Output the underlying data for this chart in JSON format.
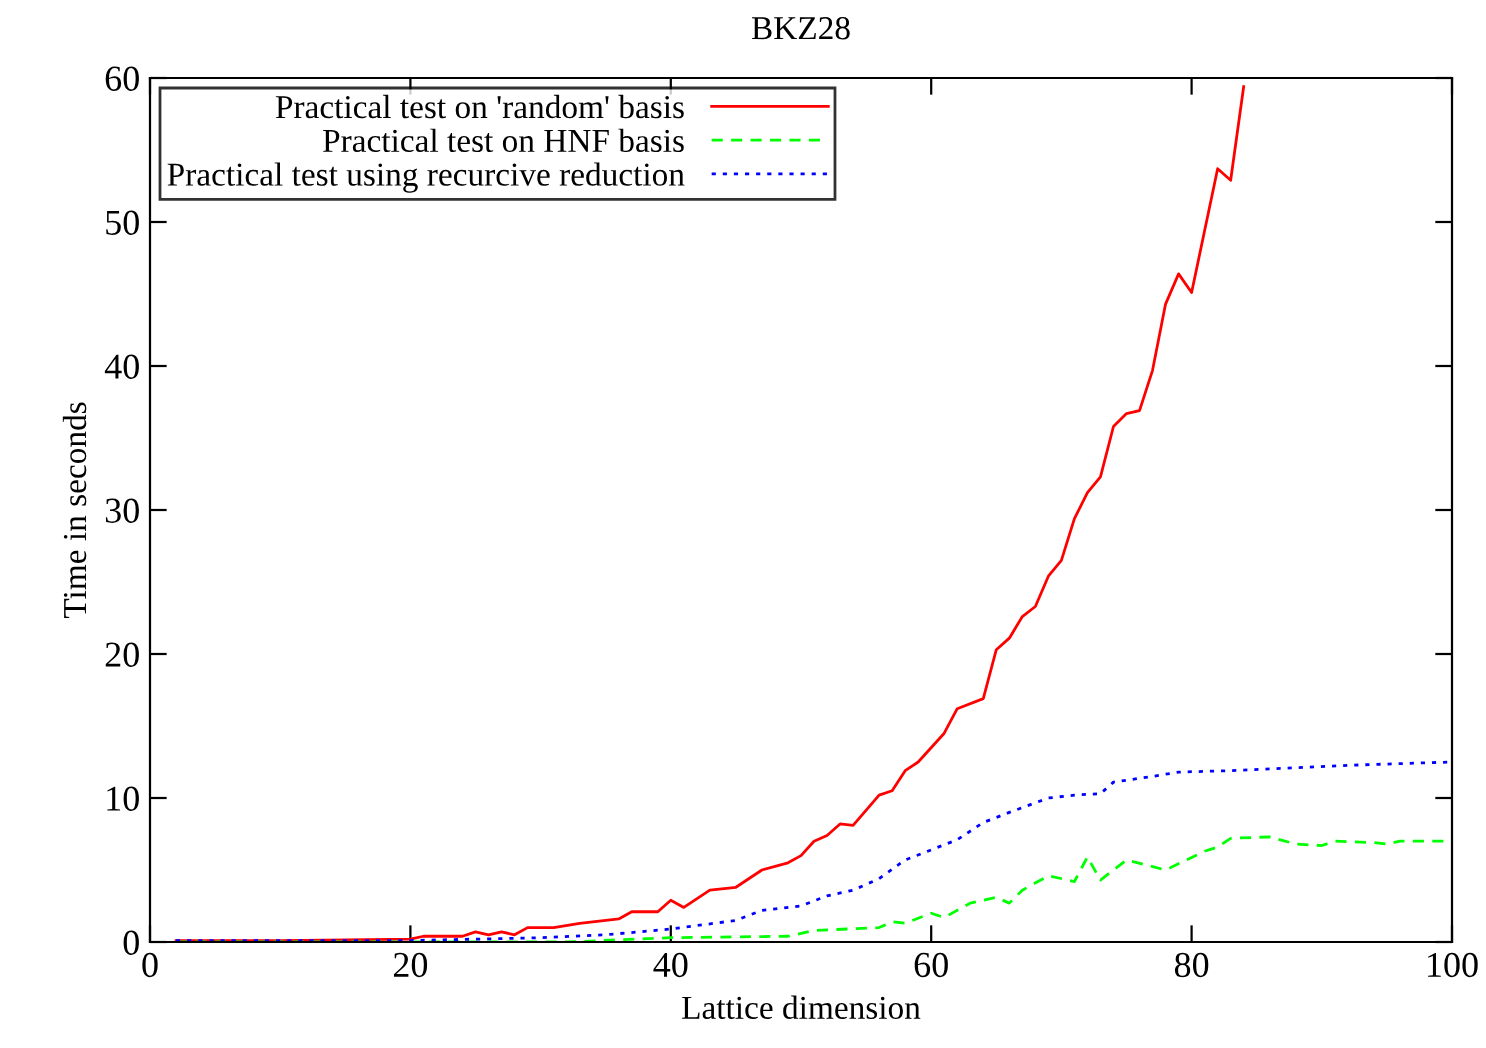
{
  "chart_data": {
    "type": "line",
    "title": "BKZ28",
    "xlabel": "Lattice dimension",
    "ylabel": "Time in seconds",
    "xlim": [
      0,
      100
    ],
    "ylim": [
      0,
      60
    ],
    "xticks": [
      0,
      20,
      40,
      60,
      80,
      100
    ],
    "yticks": [
      0,
      10,
      20,
      30,
      40,
      50,
      60
    ],
    "grid": false,
    "legend": "top left",
    "marker": "none",
    "series": [
      {
        "name": "Practical test on 'random' basis",
        "color": "#ff0000",
        "line_style": "solid",
        "x": [
          2,
          10,
          20,
          21,
          24,
          25,
          26,
          27,
          28,
          29,
          31,
          33,
          35,
          36,
          37,
          39,
          40,
          41,
          43,
          45,
          47,
          49,
          50,
          51,
          52,
          53,
          54,
          56,
          57,
          58,
          59,
          61,
          62,
          64,
          65,
          66,
          67,
          68,
          69,
          70,
          71,
          72,
          73,
          74,
          75,
          76,
          77,
          78,
          79,
          80,
          82,
          83,
          84
        ],
        "values": [
          0.1,
          0.1,
          0.2,
          0.4,
          0.4,
          0.7,
          0.5,
          0.7,
          0.5,
          1.0,
          1.0,
          1.3,
          1.5,
          1.6,
          2.1,
          2.1,
          2.9,
          2.4,
          3.6,
          3.8,
          5.0,
          5.5,
          6.0,
          7.0,
          7.4,
          8.2,
          8.1,
          10.2,
          10.5,
          11.9,
          12.5,
          14.5,
          16.2,
          16.9,
          20.3,
          21.1,
          22.6,
          23.3,
          25.4,
          26.5,
          29.4,
          31.2,
          32.3,
          35.8,
          36.7,
          36.9,
          39.7,
          44.3,
          46.4,
          45.1,
          53.7,
          52.9,
          59.4
        ]
      },
      {
        "name": "Practical test on HNF basis",
        "color": "#00ff00",
        "line_style": "dashed",
        "x": [
          2,
          20,
          32,
          40,
          49,
          51,
          56,
          57,
          58,
          60,
          61,
          63,
          65,
          66,
          67,
          69,
          71,
          72,
          73,
          75,
          78,
          81,
          82,
          83,
          86,
          88,
          90,
          91,
          94,
          95,
          96,
          100
        ],
        "values": [
          0.0,
          0.0,
          0.0,
          0.3,
          0.4,
          0.8,
          1.0,
          1.4,
          1.3,
          2.0,
          1.7,
          2.7,
          3.1,
          2.7,
          3.6,
          4.6,
          4.2,
          5.9,
          4.3,
          5.7,
          5.0,
          6.3,
          6.6,
          7.2,
          7.3,
          6.8,
          6.7,
          7.0,
          6.9,
          6.8,
          7.0,
          7.0
        ]
      },
      {
        "name": "Practical test using recurcive reduction",
        "color": "#0000ff",
        "line_style": "dotted",
        "x": [
          2,
          20,
          30,
          35,
          40,
          45,
          47,
          50,
          52,
          54,
          56,
          58,
          60,
          62,
          64,
          66,
          69,
          71,
          73,
          74,
          77,
          79,
          83,
          88,
          93,
          100
        ],
        "values": [
          0.1,
          0.1,
          0.3,
          0.5,
          0.9,
          1.5,
          2.2,
          2.5,
          3.2,
          3.6,
          4.4,
          5.7,
          6.4,
          7.1,
          8.3,
          9.0,
          10.0,
          10.2,
          10.3,
          11.1,
          11.5,
          11.8,
          11.9,
          12.1,
          12.3,
          12.5
        ]
      }
    ]
  }
}
